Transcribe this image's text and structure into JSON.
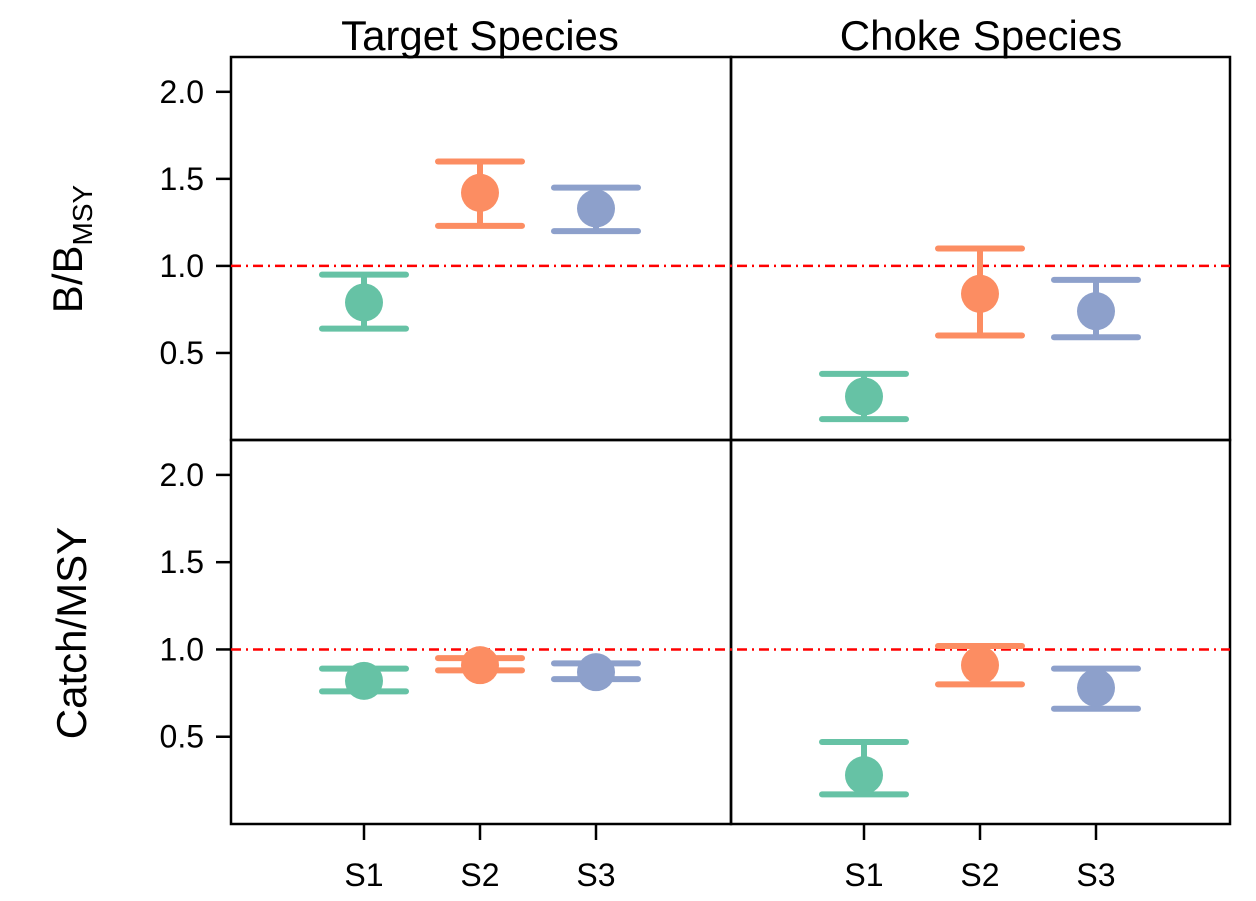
{
  "colors": {
    "S1": "#66c2a5",
    "S2": "#fc8d62",
    "S3": "#8da0cb",
    "reference": "#ff0000",
    "axis": "#000000"
  },
  "chart_data": {
    "type": "scatter",
    "subtype": "point-with-error-bars",
    "columns": [
      "Target Species",
      "Choke Species"
    ],
    "rows": [
      {
        "ylabel_main": "B/B",
        "ylabel_sub": "MSY"
      },
      {
        "ylabel_main": "Catch/MSY",
        "ylabel_sub": ""
      }
    ],
    "categories": [
      "S1",
      "S2",
      "S3"
    ],
    "yticks": [
      "0.5",
      "1.0",
      "1.5",
      "2.0"
    ],
    "ylim": [
      0,
      2.2
    ],
    "reference_line": 1.0,
    "panels": [
      {
        "row": 0,
        "col": 0,
        "points": [
          {
            "category": "S1",
            "value": 0.79,
            "low": 0.64,
            "high": 0.95
          },
          {
            "category": "S2",
            "value": 1.42,
            "low": 1.23,
            "high": 1.6
          },
          {
            "category": "S3",
            "value": 1.33,
            "low": 1.2,
            "high": 1.45
          }
        ]
      },
      {
        "row": 0,
        "col": 1,
        "points": [
          {
            "category": "S1",
            "value": 0.25,
            "low": 0.12,
            "high": 0.38
          },
          {
            "category": "S2",
            "value": 0.84,
            "low": 0.6,
            "high": 1.1
          },
          {
            "category": "S3",
            "value": 0.74,
            "low": 0.59,
            "high": 0.92
          }
        ]
      },
      {
        "row": 1,
        "col": 0,
        "points": [
          {
            "category": "S1",
            "value": 0.82,
            "low": 0.76,
            "high": 0.89
          },
          {
            "category": "S2",
            "value": 0.91,
            "low": 0.88,
            "high": 0.95
          },
          {
            "category": "S3",
            "value": 0.87,
            "low": 0.83,
            "high": 0.92
          }
        ]
      },
      {
        "row": 1,
        "col": 1,
        "points": [
          {
            "category": "S1",
            "value": 0.28,
            "low": 0.17,
            "high": 0.47
          },
          {
            "category": "S2",
            "value": 0.91,
            "low": 0.8,
            "high": 1.02
          },
          {
            "category": "S3",
            "value": 0.78,
            "low": 0.66,
            "high": 0.89
          }
        ]
      }
    ]
  }
}
